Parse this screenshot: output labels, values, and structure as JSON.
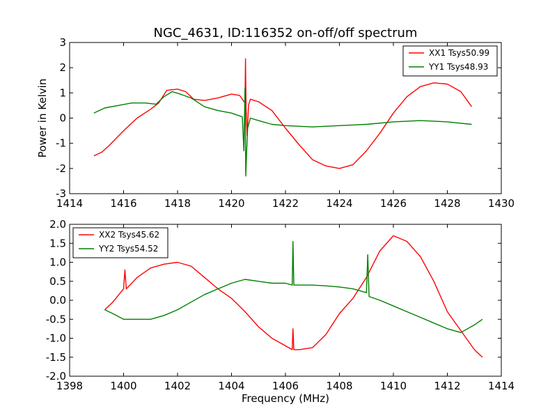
{
  "chart_data": {
    "title": "NGC_4631, ID:116352 on-off/off spectrum",
    "panels": [
      {
        "type": "line",
        "xlabel": "",
        "ylabel": "Power in Kelvin",
        "xlim": [
          1414,
          1430
        ],
        "ylim": [
          -3,
          3
        ],
        "xticks": [
          1414,
          1416,
          1418,
          1420,
          1422,
          1424,
          1426,
          1428,
          1430
        ],
        "yticks": [
          -3,
          -2,
          -1,
          0,
          1,
          2,
          3
        ],
        "legend_position": "top-right",
        "series": [
          {
            "name": "XX1 Tsys50.99",
            "color": "#ff0000",
            "x": [
              1414.9,
              1415.2,
              1415.5,
              1416.0,
              1416.5,
              1417.0,
              1417.3,
              1417.6,
              1418.0,
              1418.3,
              1418.6,
              1419.0,
              1419.5,
              1420.0,
              1420.3,
              1420.5,
              1420.52,
              1420.54,
              1420.58,
              1420.63,
              1420.7,
              1421.0,
              1421.5,
              1422.0,
              1422.5,
              1423.0,
              1423.5,
              1424.0,
              1424.5,
              1425.0,
              1425.5,
              1426.0,
              1426.5,
              1427.0,
              1427.5,
              1428.0,
              1428.5,
              1428.9
            ],
            "values": [
              -1.5,
              -1.35,
              -1.05,
              -0.5,
              0.0,
              0.35,
              0.6,
              1.1,
              1.15,
              1.05,
              0.75,
              0.7,
              0.8,
              0.95,
              0.9,
              0.6,
              2.35,
              0.4,
              -0.7,
              0.5,
              0.75,
              0.65,
              0.3,
              -0.4,
              -1.05,
              -1.65,
              -1.9,
              -2.0,
              -1.85,
              -1.3,
              -0.6,
              0.2,
              0.85,
              1.25,
              1.4,
              1.35,
              1.05,
              0.45
            ]
          },
          {
            "name": "YY1 Tsys48.93",
            "color": "#008000",
            "x": [
              1414.9,
              1415.3,
              1415.8,
              1416.3,
              1416.8,
              1417.2,
              1417.5,
              1417.8,
              1418.1,
              1418.5,
              1419.0,
              1419.5,
              1420.0,
              1420.4,
              1420.46,
              1420.5,
              1420.53,
              1420.56,
              1420.6,
              1420.7,
              1421.0,
              1421.5,
              1422.0,
              1423.0,
              1424.0,
              1425.0,
              1426.0,
              1427.0,
              1428.0,
              1428.9
            ],
            "values": [
              0.2,
              0.4,
              0.5,
              0.6,
              0.6,
              0.55,
              0.85,
              1.05,
              0.95,
              0.8,
              0.45,
              0.3,
              0.2,
              0.05,
              -1.3,
              1.2,
              -2.3,
              -1.35,
              -0.4,
              0.0,
              -0.1,
              -0.25,
              -0.3,
              -0.35,
              -0.3,
              -0.25,
              -0.15,
              -0.1,
              -0.15,
              -0.25
            ]
          }
        ]
      },
      {
        "type": "line",
        "xlabel": "Frequency (MHz)",
        "ylabel": "",
        "xlim": [
          1398,
          1414
        ],
        "ylim": [
          -2.0,
          2.0
        ],
        "xticks": [
          1398,
          1400,
          1402,
          1404,
          1406,
          1408,
          1410,
          1412,
          1414
        ],
        "yticks": [
          -2.0,
          -1.5,
          -1.0,
          -0.5,
          0.0,
          0.5,
          1.0,
          1.5,
          2.0
        ],
        "legend_position": "top-left",
        "series": [
          {
            "name": "XX2 Tsys45.62",
            "color": "#ff0000",
            "x": [
              1399.3,
              1399.6,
              1400.0,
              1400.05,
              1400.1,
              1400.5,
              1401.0,
              1401.5,
              1402.0,
              1402.5,
              1403.0,
              1403.5,
              1404.0,
              1404.5,
              1405.0,
              1405.5,
              1406.0,
              1406.25,
              1406.28,
              1406.31,
              1406.5,
              1407.0,
              1407.5,
              1408.0,
              1408.5,
              1409.0,
              1409.5,
              1410.0,
              1410.5,
              1411.0,
              1411.5,
              1412.0,
              1412.5,
              1413.0,
              1413.3
            ],
            "values": [
              -0.25,
              -0.05,
              0.3,
              0.8,
              0.3,
              0.6,
              0.85,
              0.95,
              1.0,
              0.9,
              0.6,
              0.3,
              0.05,
              -0.3,
              -0.7,
              -1.0,
              -1.2,
              -1.3,
              -0.75,
              -1.3,
              -1.3,
              -1.25,
              -0.9,
              -0.35,
              0.05,
              0.6,
              1.3,
              1.7,
              1.55,
              1.15,
              0.5,
              -0.3,
              -0.8,
              -1.3,
              -1.5
            ]
          },
          {
            "name": "YY2 Tsys54.52",
            "color": "#008000",
            "x": [
              1399.3,
              1399.6,
              1400.0,
              1400.5,
              1401.0,
              1401.5,
              1402.0,
              1402.5,
              1403.0,
              1403.5,
              1404.0,
              1404.5,
              1405.0,
              1405.5,
              1406.0,
              1406.25,
              1406.28,
              1406.31,
              1406.5,
              1407.0,
              1407.5,
              1408.0,
              1408.5,
              1409.0,
              1409.05,
              1409.1,
              1409.5,
              1410.0,
              1410.5,
              1411.0,
              1411.5,
              1412.0,
              1412.5,
              1413.0,
              1413.3
            ],
            "values": [
              -0.25,
              -0.35,
              -0.5,
              -0.5,
              -0.5,
              -0.4,
              -0.25,
              -0.05,
              0.15,
              0.3,
              0.45,
              0.55,
              0.5,
              0.45,
              0.45,
              0.4,
              1.55,
              0.4,
              0.4,
              0.4,
              0.38,
              0.35,
              0.3,
              0.2,
              1.2,
              0.1,
              0.0,
              -0.15,
              -0.3,
              -0.45,
              -0.6,
              -0.75,
              -0.85,
              -0.65,
              -0.5
            ]
          }
        ]
      }
    ]
  }
}
